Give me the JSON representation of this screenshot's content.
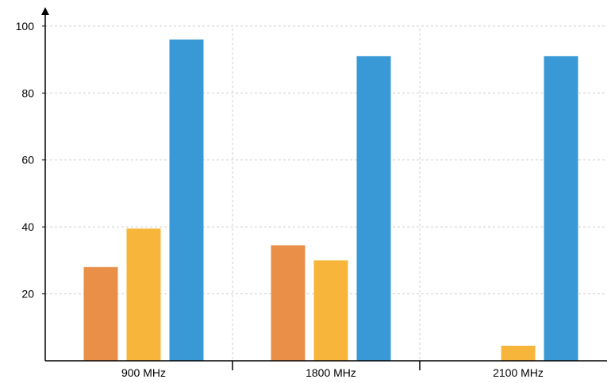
{
  "chart_data": {
    "type": "bar",
    "categories": [
      "900 MHz",
      "1800 MHz",
      "2100 MHz"
    ],
    "series": [
      {
        "color": "#e98f48",
        "values": [
          28,
          34.5,
          null
        ]
      },
      {
        "color": "#f7b53b",
        "values": [
          39.5,
          30,
          4.5
        ]
      },
      {
        "color": "#3899d6",
        "values": [
          96,
          91,
          91
        ]
      }
    ],
    "yticks": [
      20,
      40,
      60,
      80,
      100
    ],
    "ylim": [
      0,
      104
    ],
    "grid": true,
    "axis_color": "#000000",
    "grid_color": "#cfcfcf"
  }
}
